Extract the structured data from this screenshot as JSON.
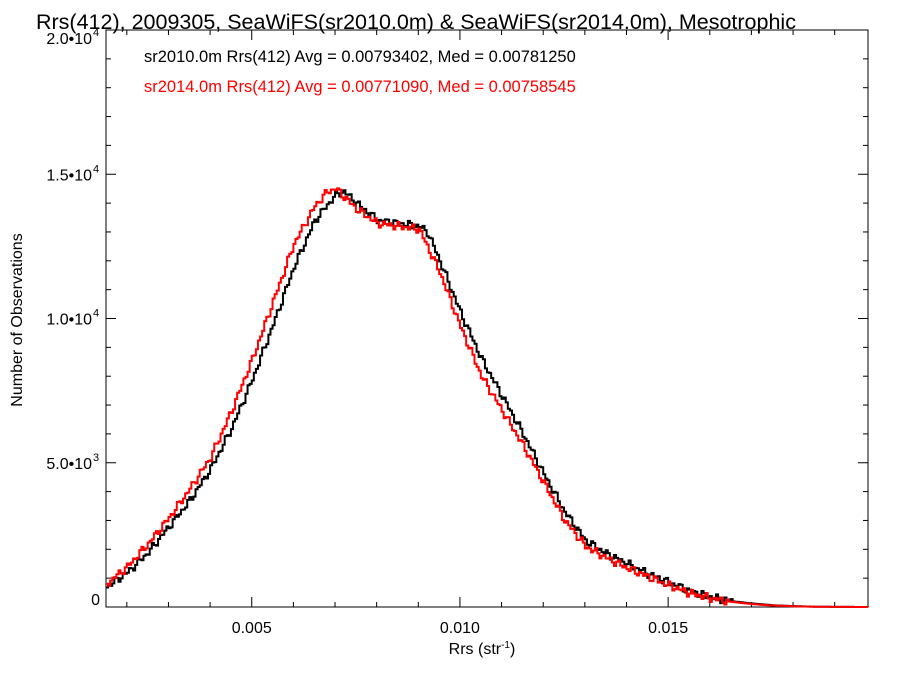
{
  "chart_data": {
    "type": "line",
    "title": "Rrs(412), 2009305, SeaWiFS(sr2010.0m) & SeaWiFS(sr2014.0m), Mesotrophic",
    "xlabel": "Rrs (str",
    "xlabel_sup": "-1",
    "xlabel_close": ")",
    "ylabel": "Number of Observations",
    "xlim": [
      0.0015,
      0.0198
    ],
    "ylim": [
      0,
      20000
    ],
    "x_ticks": [
      {
        "value": 0.005,
        "label": "0.005"
      },
      {
        "value": 0.01,
        "label": "0.010"
      },
      {
        "value": 0.015,
        "label": "0.015"
      }
    ],
    "y_ticks": [
      {
        "value": 0,
        "label": "0",
        "sup": ""
      },
      {
        "value": 5000,
        "label": "5.0•10",
        "sup": "3"
      },
      {
        "value": 10000,
        "label": "1.0•10",
        "sup": "4"
      },
      {
        "value": 15000,
        "label": "1.5•10",
        "sup": "4"
      },
      {
        "value": 20000,
        "label": "2.0•10",
        "sup": "4"
      }
    ],
    "legend_position": "top-left",
    "series": [
      {
        "name": "sr2010.0m",
        "label": "sr2010.0m Rrs(412) Avg = 0.00793402, Med = 0.00781250",
        "color": "#000000",
        "x": [
          0.0015,
          0.002,
          0.0025,
          0.003,
          0.0035,
          0.004,
          0.0045,
          0.005,
          0.0055,
          0.006,
          0.0065,
          0.007,
          0.0072,
          0.0075,
          0.008,
          0.0085,
          0.009,
          0.0092,
          0.0095,
          0.01,
          0.0105,
          0.011,
          0.0115,
          0.012,
          0.0125,
          0.013,
          0.0135,
          0.014,
          0.0145,
          0.015,
          0.0155,
          0.016,
          0.0165,
          0.017,
          0.0175,
          0.018,
          0.0185,
          0.019,
          0.0198
        ],
        "y": [
          700,
          1200,
          1900,
          2800,
          3700,
          4800,
          6200,
          7900,
          9800,
          11800,
          13400,
          14300,
          14400,
          14000,
          13400,
          13300,
          13200,
          13000,
          12000,
          10200,
          8600,
          7300,
          6000,
          4600,
          3300,
          2300,
          1850,
          1500,
          1150,
          850,
          550,
          350,
          200,
          120,
          60,
          30,
          10,
          5,
          0
        ]
      },
      {
        "name": "sr2014.0m",
        "label": "sr2014.0m Rrs(412) Avg = 0.00771090, Med = 0.00758545",
        "color": "#ff0000",
        "x": [
          0.0015,
          0.002,
          0.0025,
          0.003,
          0.0035,
          0.004,
          0.0045,
          0.005,
          0.0055,
          0.006,
          0.0065,
          0.0068,
          0.007,
          0.0075,
          0.008,
          0.0085,
          0.009,
          0.0095,
          0.01,
          0.0105,
          0.011,
          0.0115,
          0.012,
          0.0125,
          0.013,
          0.0135,
          0.014,
          0.0145,
          0.015,
          0.0155,
          0.016,
          0.0165,
          0.017,
          0.0175,
          0.018,
          0.0185,
          0.019,
          0.0198
        ],
        "y": [
          800,
          1400,
          2200,
          3100,
          4100,
          5200,
          6800,
          8600,
          10600,
          12600,
          13900,
          14400,
          14500,
          13800,
          13300,
          13200,
          13100,
          11600,
          9700,
          8000,
          6800,
          5600,
          4300,
          3000,
          2100,
          1700,
          1350,
          1050,
          750,
          480,
          300,
          180,
          100,
          50,
          25,
          10,
          5,
          0
        ]
      }
    ]
  }
}
